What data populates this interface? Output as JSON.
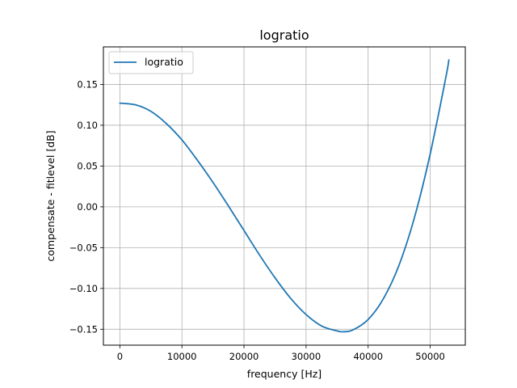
{
  "chart_data": {
    "type": "line",
    "title": "logratio",
    "xlabel": "frequency [Hz]",
    "ylabel": "compensate - fitlevel [dB]",
    "xlim": [
      -2650,
      55650
    ],
    "ylim": [
      -0.1695,
      0.196
    ],
    "xticks": [
      0,
      10000,
      20000,
      30000,
      40000,
      50000
    ],
    "xtick_labels": [
      "0",
      "10000",
      "20000",
      "30000",
      "40000",
      "50000"
    ],
    "yticks": [
      -0.15,
      -0.1,
      -0.05,
      0.0,
      0.05,
      0.1,
      0.15
    ],
    "ytick_labels": [
      "−0.15",
      "−0.10",
      "−0.05",
      "0.00",
      "0.05",
      "0.10",
      "0.15"
    ],
    "grid": true,
    "legend": {
      "position": "upper-left",
      "entries": [
        "logratio"
      ]
    },
    "series": [
      {
        "name": "logratio",
        "color": "#1f77b4",
        "x": [
          0,
          2500,
          5000,
          7500,
          10000,
          12500,
          15000,
          17500,
          20000,
          22500,
          25000,
          27500,
          30000,
          32500,
          35000,
          36000,
          37500,
          40000,
          42500,
          45000,
          47500,
          50000,
          52500,
          53000
        ],
        "y": [
          0.127,
          0.125,
          0.117,
          0.102,
          0.082,
          0.057,
          0.03,
          0.001,
          -0.029,
          -0.059,
          -0.087,
          -0.112,
          -0.132,
          -0.146,
          -0.152,
          -0.153,
          -0.151,
          -0.138,
          -0.112,
          -0.071,
          -0.012,
          0.065,
          0.158,
          0.18
        ]
      }
    ]
  }
}
